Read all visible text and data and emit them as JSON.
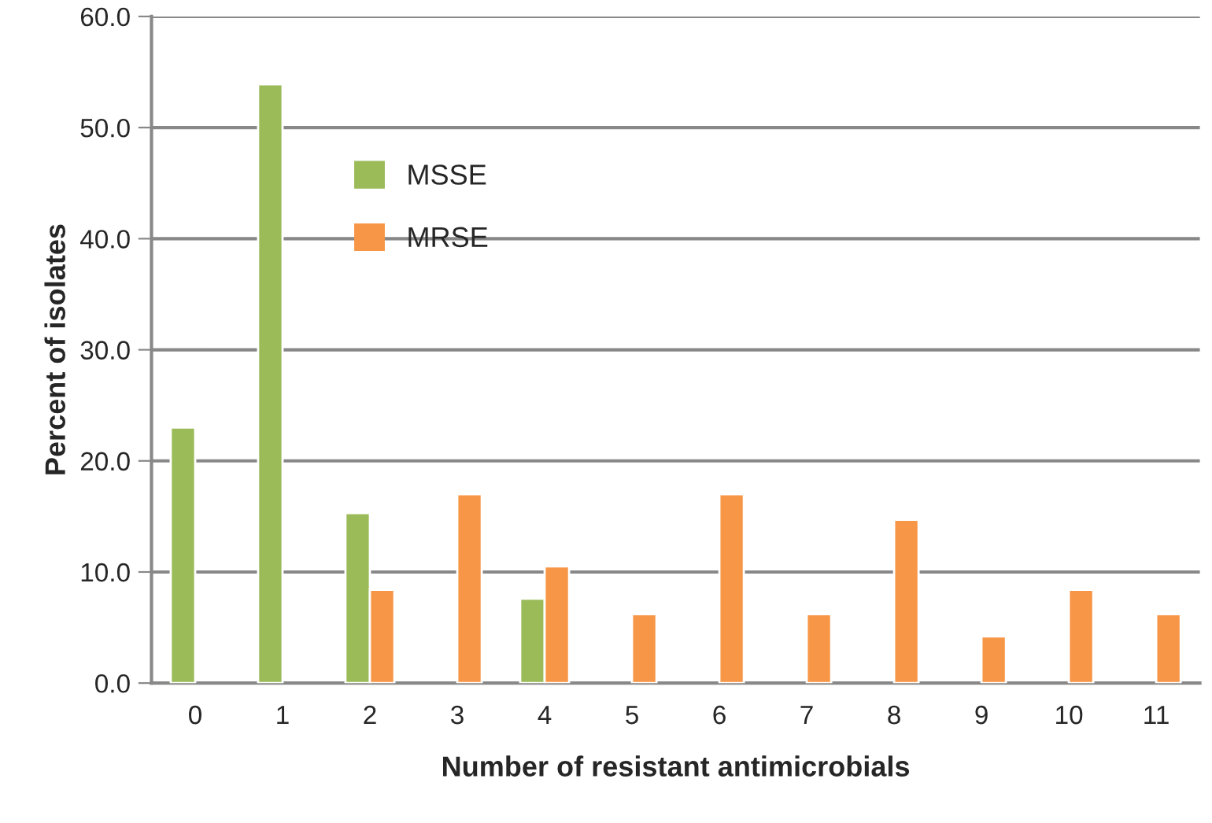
{
  "chart_data": {
    "type": "bar",
    "xlabel": "Number of resistant antimicrobials",
    "ylabel": "Percent of isolates",
    "categories": [
      "0",
      "1",
      "2",
      "3",
      "4",
      "5",
      "6",
      "7",
      "8",
      "9",
      "10",
      "11"
    ],
    "series": [
      {
        "name": "MSSE",
        "color": "#9bbb59",
        "values": [
          23.0,
          53.9,
          15.3,
          null,
          7.6,
          null,
          null,
          null,
          null,
          null,
          null,
          null
        ]
      },
      {
        "name": "MRSE",
        "color": "#f79646",
        "values": [
          null,
          null,
          8.4,
          17.0,
          10.5,
          6.2,
          17.0,
          6.2,
          14.7,
          4.2,
          8.4,
          6.2
        ]
      }
    ],
    "ylim": [
      0,
      60
    ],
    "yticks": [
      {
        "value": 0,
        "label": "0.0"
      },
      {
        "value": 10,
        "label": "10.0"
      },
      {
        "value": 20,
        "label": "20.0"
      },
      {
        "value": 30,
        "label": "30.0"
      },
      {
        "value": 40,
        "label": "40.0"
      },
      {
        "value": 50,
        "label": "50.0"
      },
      {
        "value": 60,
        "label": "60.0"
      }
    ],
    "grid": "y",
    "legend": "top left"
  }
}
